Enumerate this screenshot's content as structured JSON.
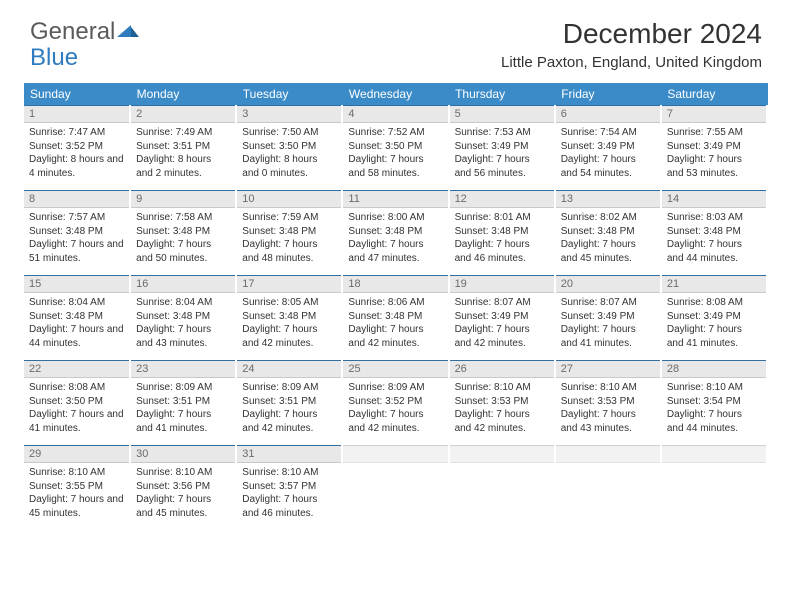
{
  "logo": {
    "text1": "General",
    "text2": "Blue"
  },
  "title": "December 2024",
  "location": "Little Paxton, England, United Kingdom",
  "colors": {
    "header_bg": "#3b8bc9",
    "header_text": "#ffffff",
    "daynum_bg": "#e8e8e8",
    "daynum_text": "#6b6b6b",
    "daynum_border_top": "#2f6fa3",
    "body_text": "#333333",
    "logo_gray": "#5a5a5a",
    "logo_blue": "#2f7bbf",
    "background": "#ffffff"
  },
  "weekdays": [
    "Sunday",
    "Monday",
    "Tuesday",
    "Wednesday",
    "Thursday",
    "Friday",
    "Saturday"
  ],
  "weeks": [
    [
      {
        "n": "1",
        "sr": "Sunrise: 7:47 AM",
        "ss": "Sunset: 3:52 PM",
        "dl": "Daylight: 8 hours and 4 minutes."
      },
      {
        "n": "2",
        "sr": "Sunrise: 7:49 AM",
        "ss": "Sunset: 3:51 PM",
        "dl": "Daylight: 8 hours and 2 minutes."
      },
      {
        "n": "3",
        "sr": "Sunrise: 7:50 AM",
        "ss": "Sunset: 3:50 PM",
        "dl": "Daylight: 8 hours and 0 minutes."
      },
      {
        "n": "4",
        "sr": "Sunrise: 7:52 AM",
        "ss": "Sunset: 3:50 PM",
        "dl": "Daylight: 7 hours and 58 minutes."
      },
      {
        "n": "5",
        "sr": "Sunrise: 7:53 AM",
        "ss": "Sunset: 3:49 PM",
        "dl": "Daylight: 7 hours and 56 minutes."
      },
      {
        "n": "6",
        "sr": "Sunrise: 7:54 AM",
        "ss": "Sunset: 3:49 PM",
        "dl": "Daylight: 7 hours and 54 minutes."
      },
      {
        "n": "7",
        "sr": "Sunrise: 7:55 AM",
        "ss": "Sunset: 3:49 PM",
        "dl": "Daylight: 7 hours and 53 minutes."
      }
    ],
    [
      {
        "n": "8",
        "sr": "Sunrise: 7:57 AM",
        "ss": "Sunset: 3:48 PM",
        "dl": "Daylight: 7 hours and 51 minutes."
      },
      {
        "n": "9",
        "sr": "Sunrise: 7:58 AM",
        "ss": "Sunset: 3:48 PM",
        "dl": "Daylight: 7 hours and 50 minutes."
      },
      {
        "n": "10",
        "sr": "Sunrise: 7:59 AM",
        "ss": "Sunset: 3:48 PM",
        "dl": "Daylight: 7 hours and 48 minutes."
      },
      {
        "n": "11",
        "sr": "Sunrise: 8:00 AM",
        "ss": "Sunset: 3:48 PM",
        "dl": "Daylight: 7 hours and 47 minutes."
      },
      {
        "n": "12",
        "sr": "Sunrise: 8:01 AM",
        "ss": "Sunset: 3:48 PM",
        "dl": "Daylight: 7 hours and 46 minutes."
      },
      {
        "n": "13",
        "sr": "Sunrise: 8:02 AM",
        "ss": "Sunset: 3:48 PM",
        "dl": "Daylight: 7 hours and 45 minutes."
      },
      {
        "n": "14",
        "sr": "Sunrise: 8:03 AM",
        "ss": "Sunset: 3:48 PM",
        "dl": "Daylight: 7 hours and 44 minutes."
      }
    ],
    [
      {
        "n": "15",
        "sr": "Sunrise: 8:04 AM",
        "ss": "Sunset: 3:48 PM",
        "dl": "Daylight: 7 hours and 44 minutes."
      },
      {
        "n": "16",
        "sr": "Sunrise: 8:04 AM",
        "ss": "Sunset: 3:48 PM",
        "dl": "Daylight: 7 hours and 43 minutes."
      },
      {
        "n": "17",
        "sr": "Sunrise: 8:05 AM",
        "ss": "Sunset: 3:48 PM",
        "dl": "Daylight: 7 hours and 42 minutes."
      },
      {
        "n": "18",
        "sr": "Sunrise: 8:06 AM",
        "ss": "Sunset: 3:48 PM",
        "dl": "Daylight: 7 hours and 42 minutes."
      },
      {
        "n": "19",
        "sr": "Sunrise: 8:07 AM",
        "ss": "Sunset: 3:49 PM",
        "dl": "Daylight: 7 hours and 42 minutes."
      },
      {
        "n": "20",
        "sr": "Sunrise: 8:07 AM",
        "ss": "Sunset: 3:49 PM",
        "dl": "Daylight: 7 hours and 41 minutes."
      },
      {
        "n": "21",
        "sr": "Sunrise: 8:08 AM",
        "ss": "Sunset: 3:49 PM",
        "dl": "Daylight: 7 hours and 41 minutes."
      }
    ],
    [
      {
        "n": "22",
        "sr": "Sunrise: 8:08 AM",
        "ss": "Sunset: 3:50 PM",
        "dl": "Daylight: 7 hours and 41 minutes."
      },
      {
        "n": "23",
        "sr": "Sunrise: 8:09 AM",
        "ss": "Sunset: 3:51 PM",
        "dl": "Daylight: 7 hours and 41 minutes."
      },
      {
        "n": "24",
        "sr": "Sunrise: 8:09 AM",
        "ss": "Sunset: 3:51 PM",
        "dl": "Daylight: 7 hours and 42 minutes."
      },
      {
        "n": "25",
        "sr": "Sunrise: 8:09 AM",
        "ss": "Sunset: 3:52 PM",
        "dl": "Daylight: 7 hours and 42 minutes."
      },
      {
        "n": "26",
        "sr": "Sunrise: 8:10 AM",
        "ss": "Sunset: 3:53 PM",
        "dl": "Daylight: 7 hours and 42 minutes."
      },
      {
        "n": "27",
        "sr": "Sunrise: 8:10 AM",
        "ss": "Sunset: 3:53 PM",
        "dl": "Daylight: 7 hours and 43 minutes."
      },
      {
        "n": "28",
        "sr": "Sunrise: 8:10 AM",
        "ss": "Sunset: 3:54 PM",
        "dl": "Daylight: 7 hours and 44 minutes."
      }
    ],
    [
      {
        "n": "29",
        "sr": "Sunrise: 8:10 AM",
        "ss": "Sunset: 3:55 PM",
        "dl": "Daylight: 7 hours and 45 minutes."
      },
      {
        "n": "30",
        "sr": "Sunrise: 8:10 AM",
        "ss": "Sunset: 3:56 PM",
        "dl": "Daylight: 7 hours and 45 minutes."
      },
      {
        "n": "31",
        "sr": "Sunrise: 8:10 AM",
        "ss": "Sunset: 3:57 PM",
        "dl": "Daylight: 7 hours and 46 minutes."
      },
      {
        "empty": true
      },
      {
        "empty": true
      },
      {
        "empty": true
      },
      {
        "empty": true
      }
    ]
  ]
}
